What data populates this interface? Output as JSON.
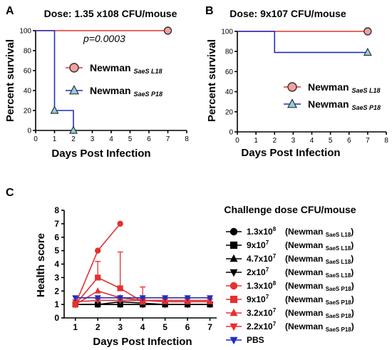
{
  "chart_data": [
    {
      "panel": "A",
      "type": "line",
      "title": "Dose: 1.35 x108 CFU/mouse",
      "xlabel": "Days Post Infection",
      "ylabel": "Percent survival",
      "xlim": [
        0,
        8
      ],
      "ylim": [
        0,
        100
      ],
      "xticks": [
        "0",
        "1",
        "2",
        "3",
        "4",
        "5",
        "6",
        "7",
        "8"
      ],
      "yticks": [
        "0",
        "20",
        "40",
        "60",
        "80",
        "100"
      ],
      "annotation": "p=0.0003",
      "series": [
        {
          "name": "Newman",
          "subscript": "SaeS L18",
          "color": "#e53030",
          "marker": "circle",
          "steps": [
            [
              0,
              100
            ],
            [
              7,
              100
            ]
          ],
          "points": [
            [
              7,
              100
            ]
          ]
        },
        {
          "name": "Newman",
          "subscript": "SaeS P18",
          "color": "#1f2fbf",
          "marker": "triangle",
          "steps": [
            [
              0,
              100
            ],
            [
              1,
              100
            ],
            [
              1,
              20
            ],
            [
              2,
              20
            ],
            [
              2,
              0
            ]
          ],
          "points": [
            [
              1,
              20
            ],
            [
              2,
              0
            ]
          ]
        }
      ]
    },
    {
      "panel": "B",
      "type": "line",
      "title": "Dose: 9x107  CFU/mouse",
      "xlabel": "Days Post Infection",
      "ylabel": "Percent survival",
      "xlim": [
        0,
        8
      ],
      "ylim": [
        0,
        100
      ],
      "xticks": [
        "0",
        "1",
        "2",
        "3",
        "4",
        "5",
        "6",
        "7",
        "8"
      ],
      "yticks": [
        "0",
        "20",
        "40",
        "60",
        "80",
        "100"
      ],
      "series": [
        {
          "name": "Newman",
          "subscript": "SaeS L18",
          "color": "#e53030",
          "marker": "circle",
          "steps": [
            [
              0,
              100
            ],
            [
              7,
              100
            ]
          ],
          "points": [
            [
              7,
              100
            ]
          ]
        },
        {
          "name": "Newman",
          "subscript": "SaeS P18",
          "color": "#1f2fbf",
          "marker": "triangle",
          "steps": [
            [
              0,
              100
            ],
            [
              2,
              100
            ],
            [
              2,
              79
            ],
            [
              7,
              79
            ]
          ],
          "points": [
            [
              7,
              79
            ]
          ]
        }
      ]
    },
    {
      "panel": "C",
      "type": "line",
      "legend_title": "Challenge dose CFU/mouse",
      "xlabel": "Days Post Infection",
      "ylabel": "Health score",
      "xlim": [
        0.5,
        7.3
      ],
      "ylim": [
        0,
        8
      ],
      "xticks": [
        "1",
        "2",
        "3",
        "4",
        "5",
        "6",
        "7"
      ],
      "yticks": [
        "0",
        "1",
        "2",
        "3",
        "4",
        "5",
        "6",
        "7",
        "8"
      ],
      "series": [
        {
          "dose": "1.3x10",
          "exp": "8",
          "strain": "(Newman ",
          "sub": "SaeS L18",
          "close": ")",
          "color": "#000000",
          "marker": "circle",
          "x": [
            1,
            2,
            3,
            4,
            5,
            6,
            7
          ],
          "values": [
            1,
            1,
            1,
            1,
            1,
            1,
            1
          ]
        },
        {
          "dose": "9x10",
          "exp": "7",
          "strain": "(Newman ",
          "sub": "SaeS L18",
          "close": ")",
          "color": "#000000",
          "marker": "square",
          "x": [
            1,
            2,
            3,
            4,
            5,
            6,
            7
          ],
          "values": [
            1,
            1,
            1,
            1,
            1,
            1,
            1
          ]
        },
        {
          "dose": "4.7x10",
          "exp": "7",
          "strain": "(Newman ",
          "sub": "SaeS L18",
          "close": ")",
          "color": "#000000",
          "marker": "triangle",
          "x": [
            1,
            2,
            3,
            4,
            5,
            6,
            7
          ],
          "values": [
            1,
            1,
            1.2,
            1.1,
            1,
            1,
            1
          ]
        },
        {
          "dose": "2x10",
          "exp": "7",
          "strain": "(Newman ",
          "sub": "SaeS L18",
          "close": ")",
          "color": "#000000",
          "marker": "tri-down",
          "x": [
            1,
            2,
            3,
            4,
            5,
            6,
            7
          ],
          "values": [
            1,
            1,
            1,
            1,
            1,
            1,
            1
          ]
        },
        {
          "dose": "1.3x10",
          "exp": "8",
          "strain": "(Newman ",
          "sub": "SaeS P18",
          "close": ")",
          "color": "#e53030",
          "marker": "circle",
          "x": [
            1,
            2,
            3
          ],
          "values": [
            1,
            5,
            7
          ]
        },
        {
          "dose": "9x10",
          "exp": "7",
          "strain": "(Newman ",
          "sub": "SaeS P18",
          "close": ")",
          "color": "#e53030",
          "marker": "square",
          "x": [
            1,
            2,
            3,
            4
          ],
          "values": [
            1,
            3,
            2.2,
            1.2
          ],
          "err": [
            0,
            1.2,
            2.7,
            1.1
          ]
        },
        {
          "dose": "3.2x10",
          "exp": "7",
          "strain": "(Newman ",
          "sub": "SaeS P18",
          "close": ")",
          "color": "#e53030",
          "marker": "triangle",
          "x": [
            1,
            2,
            3,
            4,
            5,
            6,
            7
          ],
          "values": [
            1,
            2,
            1.5,
            1.3,
            1.2,
            1.2,
            1.2
          ]
        },
        {
          "dose": "2.2x10",
          "exp": "7",
          "strain": "(Newman ",
          "sub": "SaeS P18",
          "close": ")",
          "color": "#e53030",
          "marker": "tri-down",
          "x": [
            1,
            2,
            3,
            4,
            5,
            6,
            7
          ],
          "values": [
            1.2,
            1.3,
            1.3,
            1.3,
            1.3,
            1.3,
            1.3
          ]
        },
        {
          "label": "PBS",
          "color": "#1f2fbf",
          "marker": "tri-down",
          "x": [
            1,
            2,
            3,
            4,
            5,
            6,
            7
          ],
          "values": [
            1.5,
            1.5,
            1.5,
            1.5,
            1.5,
            1.5,
            1.5
          ]
        }
      ]
    }
  ],
  "panels": {
    "a": "A",
    "b": "B",
    "c": "C"
  }
}
